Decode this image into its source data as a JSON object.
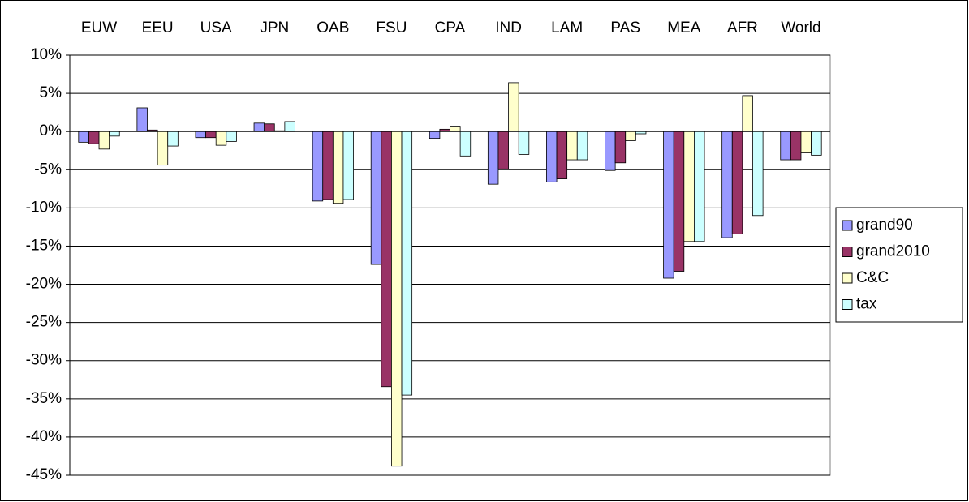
{
  "chart_data": {
    "type": "bar",
    "categories": [
      "EUW",
      "EEU",
      "USA",
      "JPN",
      "OAB",
      "FSU",
      "CPA",
      "IND",
      "LAM",
      "PAS",
      "MEA",
      "AFR",
      "World"
    ],
    "series": [
      {
        "name": "grand90",
        "color": "#9999ff",
        "values": [
          -1.4,
          3.1,
          -0.8,
          1.1,
          -9.1,
          -17.4,
          -0.9,
          -6.9,
          -6.6,
          -5.1,
          -19.2,
          -13.9,
          -3.7
        ]
      },
      {
        "name": "grand2010",
        "color": "#993366",
        "values": [
          -1.6,
          0.2,
          -0.8,
          1.0,
          -8.9,
          -33.4,
          0.3,
          -4.9,
          -6.2,
          -4.1,
          -18.3,
          -13.4,
          -3.7
        ]
      },
      {
        "name": "C&C",
        "color": "#ffffcc",
        "values": [
          -2.3,
          -4.4,
          -1.8,
          0.1,
          -9.4,
          -43.8,
          0.7,
          6.4,
          -3.7,
          -1.2,
          -14.4,
          4.7,
          -2.8
        ]
      },
      {
        "name": "tax",
        "color": "#ccffff",
        "values": [
          -0.6,
          -1.9,
          -1.3,
          1.3,
          -8.9,
          -34.5,
          -3.2,
          -3.0,
          -3.7,
          -0.3,
          -14.4,
          -11.0,
          -3.1
        ]
      }
    ],
    "ylim": [
      -45,
      10
    ],
    "yticks": [
      {
        "value": 10,
        "label": "10%"
      },
      {
        "value": 5,
        "label": "5%"
      },
      {
        "value": 0,
        "label": "0%"
      },
      {
        "value": -5,
        "label": "-5%"
      },
      {
        "value": -10,
        "label": "-10%"
      },
      {
        "value": -15,
        "label": "-15%"
      },
      {
        "value": -20,
        "label": "-20%"
      },
      {
        "value": -25,
        "label": "-25%"
      },
      {
        "value": -30,
        "label": "-30%"
      },
      {
        "value": -35,
        "label": "-35%"
      },
      {
        "value": -40,
        "label": "-40%"
      },
      {
        "value": -45,
        "label": "-45%"
      }
    ],
    "grid": true
  }
}
